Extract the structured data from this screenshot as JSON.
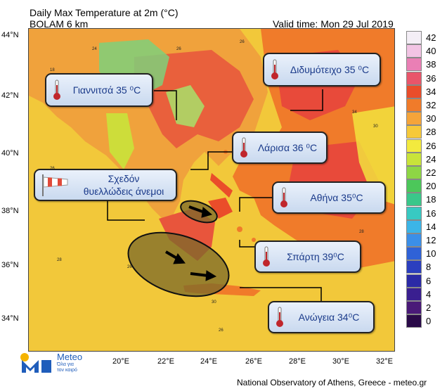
{
  "header": {
    "title_line1": "Daily Max Temperature at 2m (°C)",
    "title_line2": "BOLAM 6 km",
    "valid_time": "Valid time: Mon 29 Jul 2019"
  },
  "map": {
    "lat_labels": [
      "44°N",
      "42°N",
      "40°N",
      "38°N",
      "36°N",
      "34°N"
    ],
    "lon_labels": [
      "20°E",
      "22°E",
      "24°E",
      "26°E",
      "28°E",
      "30°E",
      "32°E"
    ],
    "colors": {
      "sea": "#f2c83a",
      "land_hot": "#e8503c",
      "land_warm": "#f38a3a",
      "mountain": "#7fd07a",
      "arrow": "#000000"
    }
  },
  "callouts": {
    "giannitsa": "Γιαννιτσά 35 ⁰C",
    "didymoteicho": "Διδυμότειχο 35 ⁰C",
    "larisa": "Λάρισα 36 ⁰C",
    "winds_line1": "Σχεδόν",
    "winds_line2": "θυελλώδεις άνεμοι",
    "athina": "Αθήνα 35⁰C",
    "sparti": "Σπάρτη 39⁰C",
    "anogeia": "Ανώγεια 34⁰C"
  },
  "legend": {
    "labels": [
      "42",
      "40",
      "38",
      "36",
      "34",
      "32",
      "30",
      "28",
      "26",
      "24",
      "22",
      "20",
      "18",
      "16",
      "14",
      "12",
      "10",
      "8",
      "6",
      "4",
      "2",
      "0"
    ],
    "colors": [
      "#f4eef6",
      "#f2c4e4",
      "#ea7fb5",
      "#e9556a",
      "#ea4d2a",
      "#f07b2a",
      "#f5a43a",
      "#f6c93a",
      "#f3ea3e",
      "#c9e33a",
      "#8ed645",
      "#4cc75a",
      "#3ac78a",
      "#38c9c2",
      "#3cb5e7",
      "#3b8fe8",
      "#2f62d7",
      "#2b3fbf",
      "#2b2aa6",
      "#3a1f90",
      "#4a1a78",
      "#2a0a48"
    ]
  },
  "logo": {
    "name": "Meteo",
    "tagline_line1": "Όλα για",
    "tagline_line2": "τον καιρό"
  },
  "footer": "National Observatory of Athens, Greece - meteo.gr"
}
